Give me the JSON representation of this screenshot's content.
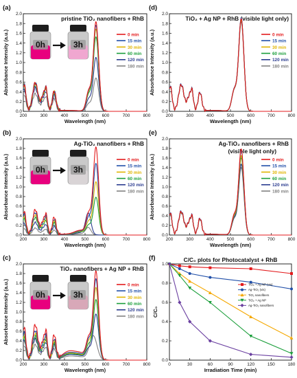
{
  "colors": {
    "0 min": "#e31a1c",
    "15 min": "#1f4ea8",
    "30 min": "#e0b400",
    "60 min": "#1a9e3a",
    "120 min": "#2a3b8f",
    "180 min": "#808080"
  },
  "vial_labels": [
    "0h",
    "3h"
  ],
  "chart_data": [
    {
      "type": "line",
      "panel": "(a)",
      "title": "pristine TiO₂ nanofibers + RhB",
      "xlabel": "Wavelength (nm)",
      "ylabel": "Absorbance Intensity (a.u.)",
      "xlim": [
        200,
        800
      ],
      "ylim": [
        0,
        2.0
      ],
      "xticks": [
        "200",
        "300",
        "400",
        "500",
        "600",
        "700",
        "800"
      ],
      "yticks": [
        "0.0",
        "0.2",
        "0.4",
        "0.6",
        "0.8",
        "1.0",
        "1.2",
        "1.4",
        "1.6",
        "1.8",
        "2.0"
      ],
      "legend_position": "right",
      "has_vials": true,
      "series": [
        {
          "name": "0 min",
          "peak": 1.83,
          "base": 1.0
        },
        {
          "name": "15 min",
          "peak": 1.76,
          "base": 1.0
        },
        {
          "name": "30 min",
          "peak": 1.68,
          "base": 0.98
        },
        {
          "name": "60 min",
          "peak": 1.52,
          "base": 0.95
        },
        {
          "name": "120 min",
          "peak": 1.1,
          "base": 0.82
        },
        {
          "name": "180 min",
          "peak": 0.68,
          "base": 0.62
        }
      ]
    },
    {
      "type": "line",
      "panel": "(b)",
      "title": "Ag-TiO₂ nanofibers + RhB",
      "xlabel": "Wavelength (nm)",
      "ylabel": "Absorbance Intensity (a.u.)",
      "xlim": [
        200,
        800
      ],
      "ylim": [
        0,
        2.0
      ],
      "xticks": [
        "200",
        "300",
        "400",
        "500",
        "600",
        "700",
        "800"
      ],
      "yticks": [
        "0.0",
        "0.2",
        "0.4",
        "0.6",
        "0.8",
        "1.0",
        "1.2",
        "1.4",
        "1.6",
        "1.8",
        "2.0"
      ],
      "legend_position": "right",
      "has_vials": true,
      "series": [
        {
          "name": "0 min",
          "peak": 1.82,
          "base": 0.9
        },
        {
          "name": "15 min",
          "peak": 1.48,
          "base": 0.8
        },
        {
          "name": "30 min",
          "peak": 1.1,
          "base": 0.72
        },
        {
          "name": "60 min",
          "peak": 0.78,
          "base": 0.62
        },
        {
          "name": "120 min",
          "peak": 0.36,
          "base": 0.45
        },
        {
          "name": "180 min",
          "peak": 0.12,
          "base": 0.25
        }
      ]
    },
    {
      "type": "line",
      "panel": "(c)",
      "title": "TiO₂ nanofibers + Ag NP + RhB",
      "xlabel": "Wavelength (nm)",
      "ylabel": "Absorbance Intensity (a.u.)",
      "xlim": [
        200,
        800
      ],
      "ylim": [
        0,
        2.0
      ],
      "xticks": [
        "200",
        "300",
        "400",
        "500",
        "600",
        "700",
        "800"
      ],
      "yticks": [
        "0.0",
        "0.2",
        "0.4",
        "0.6",
        "0.8",
        "1.0",
        "1.2",
        "1.4",
        "1.6",
        "1.8",
        "2.0"
      ],
      "legend_position": "right",
      "has_vials": true,
      "series": [
        {
          "name": "0 min",
          "peak": 1.84,
          "base": 1.25
        },
        {
          "name": "15 min",
          "peak": 1.68,
          "base": 1.05
        },
        {
          "name": "30 min",
          "peak": 1.5,
          "base": 0.95
        },
        {
          "name": "60 min",
          "peak": 1.25,
          "base": 0.85
        },
        {
          "name": "120 min",
          "peak": 0.95,
          "base": 0.75
        },
        {
          "name": "180 min",
          "peak": 0.5,
          "base": 0.55
        }
      ]
    },
    {
      "type": "line",
      "panel": "(d)",
      "title": "TiO₂ + Ag NP + RhB (visible light only)",
      "xlabel": "Wavelength (nm)",
      "ylabel": "Absorbance Intensity (a.u.)",
      "xlim": [
        200,
        800
      ],
      "ylim": [
        0,
        2.0
      ],
      "xticks": [
        "200",
        "300",
        "400",
        "500",
        "600",
        "700",
        "800"
      ],
      "yticks": [
        "0.0",
        "0.2",
        "0.4",
        "0.6",
        "0.8",
        "1.0",
        "1.2",
        "1.4",
        "1.6",
        "1.8",
        "2.0"
      ],
      "legend_position": "right",
      "has_vials": false,
      "series": [
        {
          "name": "0 min",
          "peak": 1.93,
          "base": 0.95
        },
        {
          "name": "15 min",
          "peak": 1.91,
          "base": 0.95
        },
        {
          "name": "30 min",
          "peak": 1.9,
          "base": 0.95
        },
        {
          "name": "60 min",
          "peak": 1.89,
          "base": 0.94
        },
        {
          "name": "120 min",
          "peak": 1.87,
          "base": 0.94
        },
        {
          "name": "180 min",
          "peak": 1.85,
          "base": 0.93
        }
      ]
    },
    {
      "type": "line",
      "panel": "(e)",
      "title": "Ag-TiO₂ nanofibers + RhB",
      "subtitle": "(visible light only)",
      "xlabel": "Wavelength (nm)",
      "ylabel": "Absorbance Intensity (a.u.)",
      "xlim": [
        200,
        800
      ],
      "ylim": [
        0,
        2.0
      ],
      "xticks": [
        "200",
        "300",
        "400",
        "500",
        "600",
        "700",
        "800"
      ],
      "yticks": [
        "0.0",
        "0.2",
        "0.4",
        "0.6",
        "0.8",
        "1.0",
        "1.2",
        "1.4",
        "1.6",
        "1.8",
        "2.0"
      ],
      "legend_position": "right",
      "has_vials": false,
      "series": [
        {
          "name": "0 min",
          "peak": 1.82,
          "base": 0.85
        },
        {
          "name": "15 min",
          "peak": 1.75,
          "base": 0.85
        },
        {
          "name": "30 min",
          "peak": 1.68,
          "base": 0.84
        },
        {
          "name": "60 min",
          "peak": 1.6,
          "base": 0.83
        },
        {
          "name": "120 min",
          "peak": 1.5,
          "base": 0.82
        },
        {
          "name": "180 min",
          "peak": 1.4,
          "base": 0.8
        }
      ]
    },
    {
      "type": "line",
      "panel": "(f)",
      "title": "C/C₀ plots for Photocatalyst + RhB",
      "xlabel": "Irradiation Time (min)",
      "ylabel": "C/C₀",
      "xlim": [
        0,
        180
      ],
      "ylim": [
        0.0,
        1.0
      ],
      "xticks": [
        "0",
        "30",
        "60",
        "90",
        "120",
        "150",
        "180"
      ],
      "yticks": [
        "0.0",
        "0.2",
        "0.4",
        "0.6",
        "0.8",
        "1.0"
      ],
      "legend_position": "center-right",
      "x": [
        0,
        15,
        30,
        60,
        120,
        180
      ],
      "series": [
        {
          "name": "TiO₂ + Ag NP (vis)",
          "color": "#e31a1c",
          "marker": "square",
          "values": [
            1.0,
            0.98,
            0.97,
            0.96,
            0.95,
            0.9
          ]
        },
        {
          "name": "Ag-TiO₂ (vis)",
          "color": "#1f4ea8",
          "marker": "circle",
          "values": [
            1.0,
            0.95,
            0.9,
            0.86,
            0.81,
            0.74
          ]
        },
        {
          "name": "TiO₂ nanofibers",
          "color": "#f5a800",
          "marker": "triangle-up",
          "values": [
            1.0,
            0.9,
            0.82,
            0.7,
            0.45,
            0.23
          ]
        },
        {
          "name": "TiO₂ + Ag NP",
          "color": "#1a9e3a",
          "marker": "triangle-down",
          "values": [
            1.0,
            0.88,
            0.75,
            0.6,
            0.25,
            0.07
          ]
        },
        {
          "name": "Ag-TiO₂ nanofibers",
          "color": "#6a3fa0",
          "marker": "diamond",
          "values": [
            1.0,
            0.6,
            0.4,
            0.2,
            0.06,
            0.03
          ]
        }
      ]
    }
  ]
}
